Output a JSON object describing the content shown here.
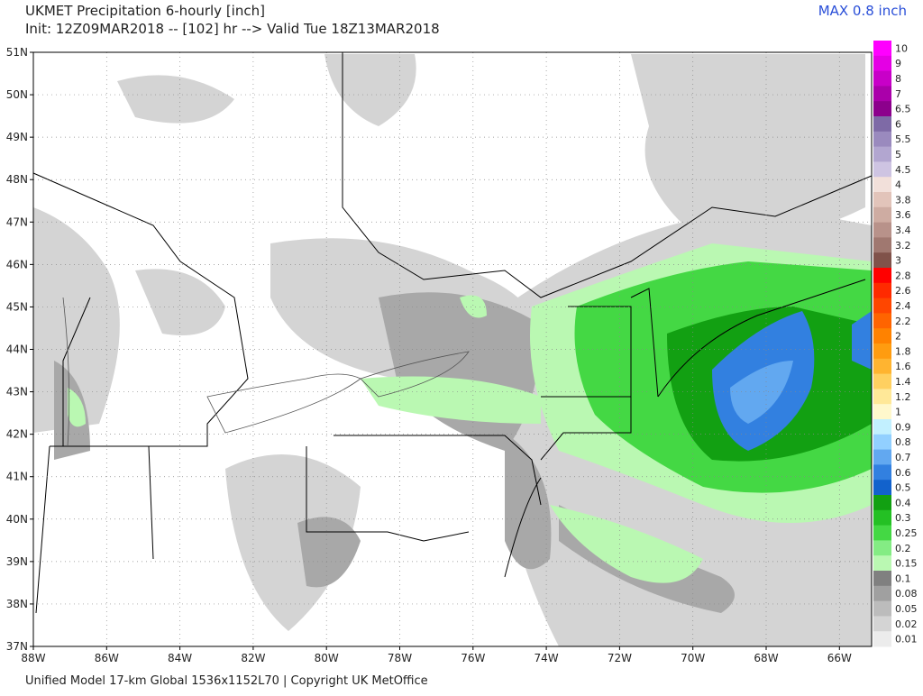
{
  "header": {
    "title": "UKMET Precipitation 6-hourly [inch]",
    "subtitle": "Init: 12Z09MAR2018 -- [102] hr --> Valid Tue 18Z13MAR2018",
    "max_label": "MAX 0.8 inch"
  },
  "map": {
    "lat_labels": [
      "51N",
      "50N",
      "49N",
      "48N",
      "47N",
      "46N",
      "45N",
      "44N",
      "43N",
      "42N",
      "41N",
      "40N",
      "39N",
      "38N",
      "37N"
    ],
    "lon_labels": [
      "88W",
      "86W",
      "84W",
      "82W",
      "80W",
      "78W",
      "76W",
      "74W",
      "72W",
      "70W",
      "68W",
      "66W"
    ]
  },
  "colorbar": [
    {
      "label": "10",
      "color": "#ff00ff"
    },
    {
      "label": "9",
      "color": "#e400e4"
    },
    {
      "label": "8",
      "color": "#c800c8"
    },
    {
      "label": "7",
      "color": "#aa00aa"
    },
    {
      "label": "6.5",
      "color": "#8c008c"
    },
    {
      "label": "6",
      "color": "#7e6aa6"
    },
    {
      "label": "5.5",
      "color": "#9a8abe"
    },
    {
      "label": "5",
      "color": "#b2a6d0"
    },
    {
      "label": "4.5",
      "color": "#cec4e2"
    },
    {
      "label": "4",
      "color": "#f2e0da"
    },
    {
      "label": "3.8",
      "color": "#e2c4ba"
    },
    {
      "label": "3.6",
      "color": "#ceaca2"
    },
    {
      "label": "3.4",
      "color": "#b8928a"
    },
    {
      "label": "3.2",
      "color": "#a07870"
    },
    {
      "label": "3",
      "color": "#80524a"
    },
    {
      "label": "2.8",
      "color": "#ff0000"
    },
    {
      "label": "2.6",
      "color": "#ff2a00"
    },
    {
      "label": "2.4",
      "color": "#ff4600"
    },
    {
      "label": "2.2",
      "color": "#ff6400"
    },
    {
      "label": "2",
      "color": "#ff8200"
    },
    {
      "label": "1.8",
      "color": "#ff9c10"
    },
    {
      "label": "1.6",
      "color": "#ffb430"
    },
    {
      "label": "1.4",
      "color": "#ffd060"
    },
    {
      "label": "1.2",
      "color": "#ffe898"
    },
    {
      "label": "1",
      "color": "#fff8cc"
    },
    {
      "label": "0.9",
      "color": "#c2f0ff"
    },
    {
      "label": "0.8",
      "color": "#92d0ff"
    },
    {
      "label": "0.7",
      "color": "#62a8f0"
    },
    {
      "label": "0.6",
      "color": "#3280e0"
    },
    {
      "label": "0.5",
      "color": "#1262cc"
    },
    {
      "label": "0.4",
      "color": "#12a012"
    },
    {
      "label": "0.3",
      "color": "#24c024"
    },
    {
      "label": "0.25",
      "color": "#44d844"
    },
    {
      "label": "0.2",
      "color": "#84ec84"
    },
    {
      "label": "0.15",
      "color": "#baf8b2"
    },
    {
      "label": "0.1",
      "color": "#808080"
    },
    {
      "label": "0.08",
      "color": "#a0a0a0"
    },
    {
      "label": "0.05",
      "color": "#bcbcbc"
    },
    {
      "label": "0.02",
      "color": "#d4d4d4"
    },
    {
      "label": "0.01",
      "color": "#ececec"
    }
  ],
  "footer": "Unified Model 17-km Global 1536x1152L70 | Copyright UK MetOffice"
}
